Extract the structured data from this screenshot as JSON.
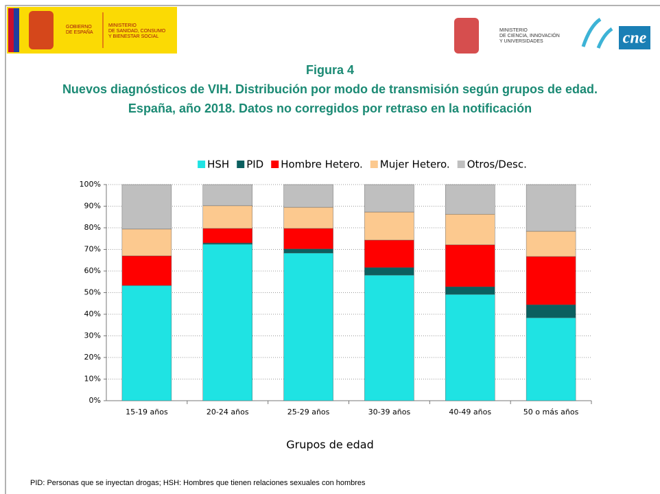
{
  "header": {
    "left_a": [
      "GOBIERNO",
      "DE ESPAÑA"
    ],
    "left_b": [
      "MINISTERIO",
      "DE SANIDAD, CONSUMO",
      "Y BIENESTAR SOCIAL"
    ],
    "right": [
      "MINISTERIO",
      "DE CIENCIA, INNOVACIÓN",
      "Y UNIVERSIDADES"
    ],
    "logo": "cne"
  },
  "chart_data": {
    "type": "stacked_bar",
    "title": "Figura 4",
    "subtitle": [
      "Nuevos diagnósticos de VIH. Distribución por modo de transmisión según grupos de edad.",
      "España, año 2018. Datos no corregidos por retraso en la notificación"
    ],
    "x_label": "Grupos de edad",
    "footnote": "PID: Personas que se inyectan drogas; HSH: Hombres que tienen relaciones sexuales con hombres",
    "categories": [
      "15-19 años",
      "20-24 años",
      "25-29 años",
      "30-39 años",
      "40-49 años",
      "50 o más años"
    ],
    "series": [
      {
        "name": "HSH",
        "color": "#1fe3e3",
        "values": [
          53.3,
          72.4,
          68.3,
          58.1,
          49.2,
          38.4
        ]
      },
      {
        "name": "PID",
        "color": "#0b5f5f",
        "values": [
          0,
          0.6,
          1.9,
          3.5,
          3.5,
          6.0
        ]
      },
      {
        "name": "Hombre Hetero.",
        "color": "#ff0000",
        "values": [
          13.7,
          6.7,
          9.5,
          12.7,
          19.4,
          22.3
        ]
      },
      {
        "name": "Mujer Hetero.",
        "color": "#fcc98f",
        "values": [
          12.4,
          10.5,
          9.8,
          13.0,
          14.2,
          11.7
        ]
      },
      {
        "name": "Otros/Desc.",
        "color": "#bfbfbf",
        "values": [
          20.6,
          9.8,
          10.5,
          12.7,
          13.7,
          21.6
        ]
      }
    ],
    "ylim": [
      0,
      100
    ],
    "yticks": [
      {
        "value": 0,
        "label": "0%"
      },
      {
        "value": 10,
        "label": "10%"
      },
      {
        "value": 20,
        "label": "20%"
      },
      {
        "value": 30,
        "label": "30%"
      },
      {
        "value": 40,
        "label": "40%"
      },
      {
        "value": 50,
        "label": "50%"
      },
      {
        "value": 60,
        "label": "60%"
      },
      {
        "value": 70,
        "label": "70%"
      },
      {
        "value": 80,
        "label": "80%"
      },
      {
        "value": 90,
        "label": "90%"
      },
      {
        "value": 100,
        "label": "100%"
      }
    ],
    "grid": true,
    "legend": "top"
  }
}
